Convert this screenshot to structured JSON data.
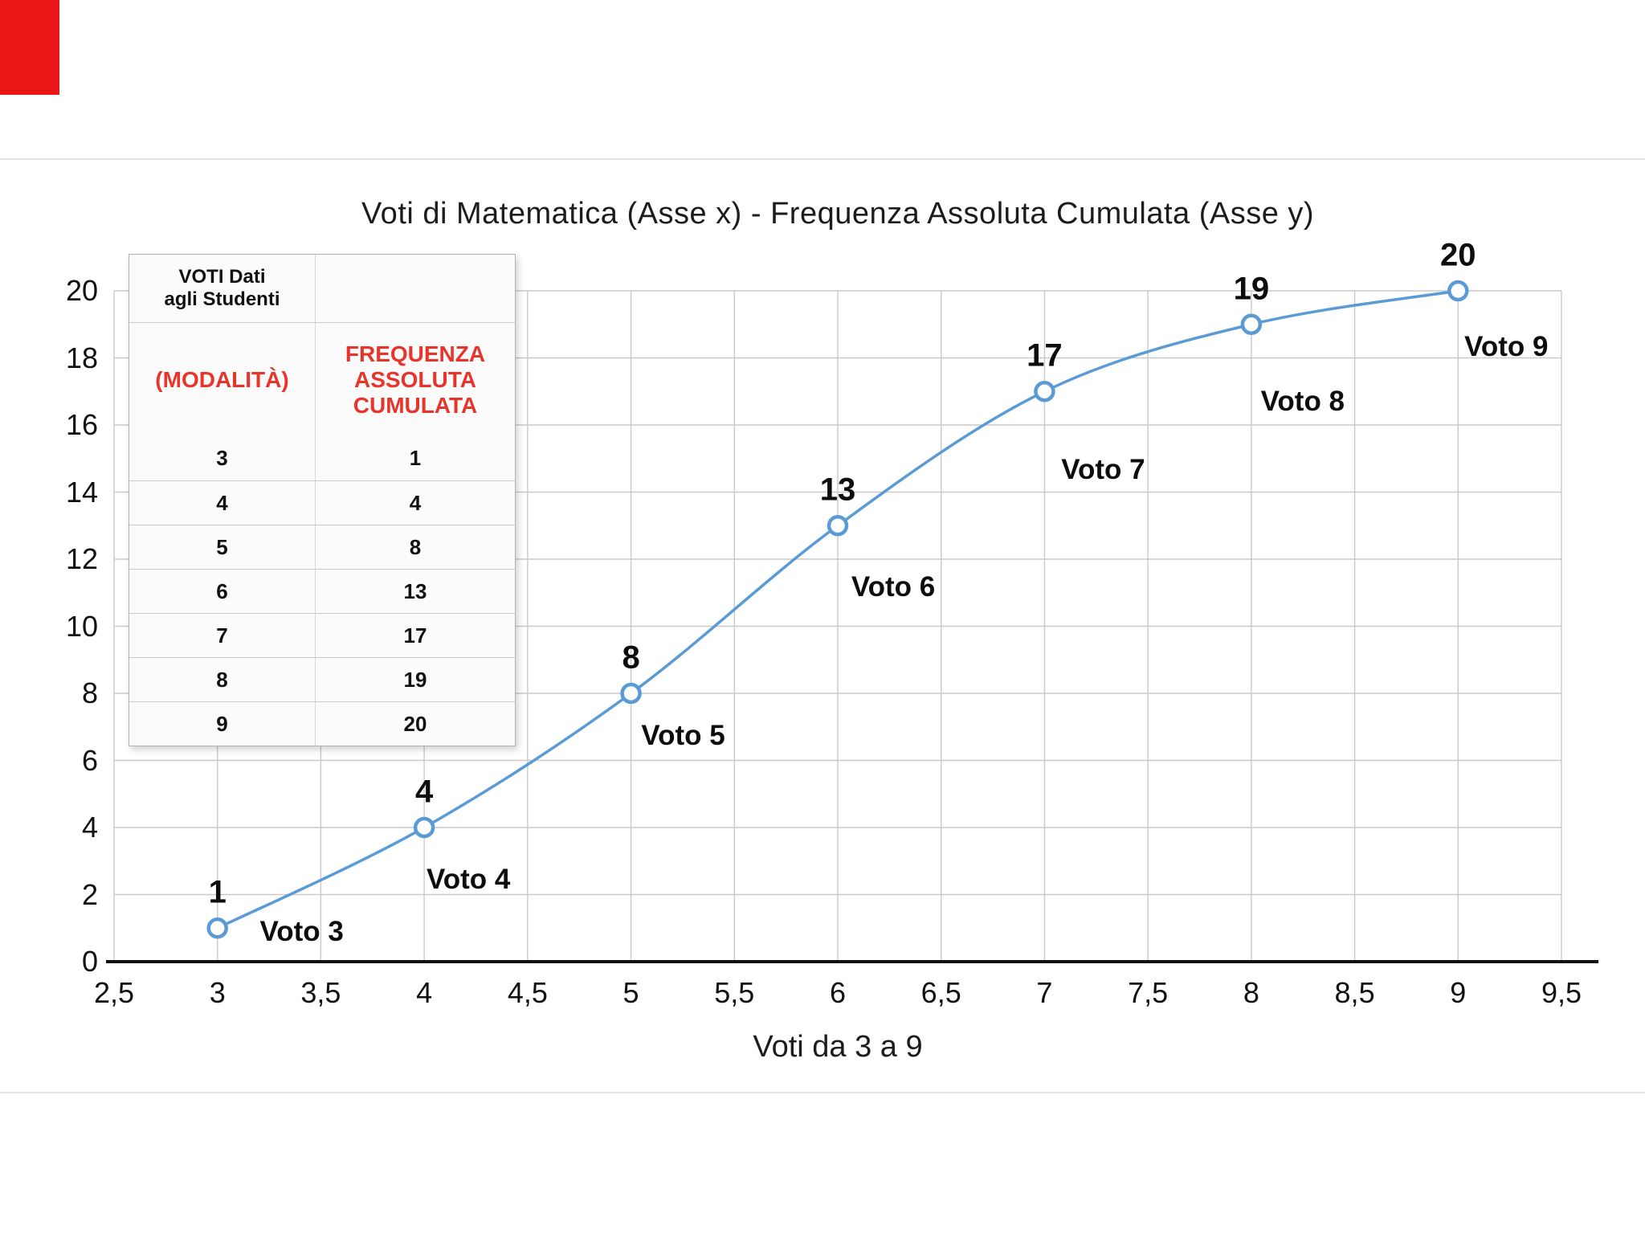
{
  "page": {
    "corner_square_color": "#ea1517"
  },
  "inset_table": {
    "col1_header": "VOTI Dati\nagli Studenti",
    "col1_subheader": "(MODALITÀ)",
    "col2_header": "FREQUENZA\nASSOLUTA\nCUMULATA",
    "rows": [
      [
        "3",
        "1"
      ],
      [
        "4",
        "4"
      ],
      [
        "5",
        "8"
      ],
      [
        "6",
        "13"
      ],
      [
        "7",
        "17"
      ],
      [
        "8",
        "19"
      ],
      [
        "9",
        "20"
      ]
    ]
  },
  "chart_data": {
    "type": "line",
    "title": "Voti di Matematica (Asse x) - Frequenza Assoluta Cumulata (Asse y)",
    "xlabel": "Voti da 3 a 9",
    "ylabel": "",
    "x": [
      3,
      4,
      5,
      6,
      7,
      8,
      9
    ],
    "y": [
      1,
      4,
      8,
      13,
      17,
      19,
      20
    ],
    "point_labels": [
      "1",
      "4",
      "8",
      "13",
      "17",
      "19",
      "20"
    ],
    "point_names": [
      "Voto 3",
      "Voto 4",
      "Voto 5",
      "Voto 6",
      "Voto 7",
      "Voto 8",
      "Voto 9"
    ],
    "xlim": [
      2.5,
      9.5
    ],
    "ylim": [
      0,
      20
    ],
    "x_tick_values": [
      2.5,
      3,
      3.5,
      4,
      4.5,
      5,
      5.5,
      6,
      6.5,
      7,
      7.5,
      8,
      8.5,
      9,
      9.5
    ],
    "x_tick_labels": [
      "2,5",
      "3",
      "3,5",
      "4",
      "4,5",
      "5",
      "5,5",
      "6",
      "6,5",
      "7",
      "7,5",
      "8",
      "8,5",
      "9",
      "9,5"
    ],
    "y_tick_values": [
      0,
      2,
      4,
      6,
      8,
      10,
      12,
      14,
      16,
      18,
      20
    ],
    "y_tick_labels": [
      "0",
      "2",
      "4",
      "6",
      "8",
      "10",
      "12",
      "14",
      "16",
      "18",
      "20"
    ],
    "grid": true,
    "legend": false,
    "line_color": "#5b9bd5",
    "marker_fill": "#ffffff",
    "grid_color": "#c9c9c9",
    "axis_color": "#111111"
  }
}
